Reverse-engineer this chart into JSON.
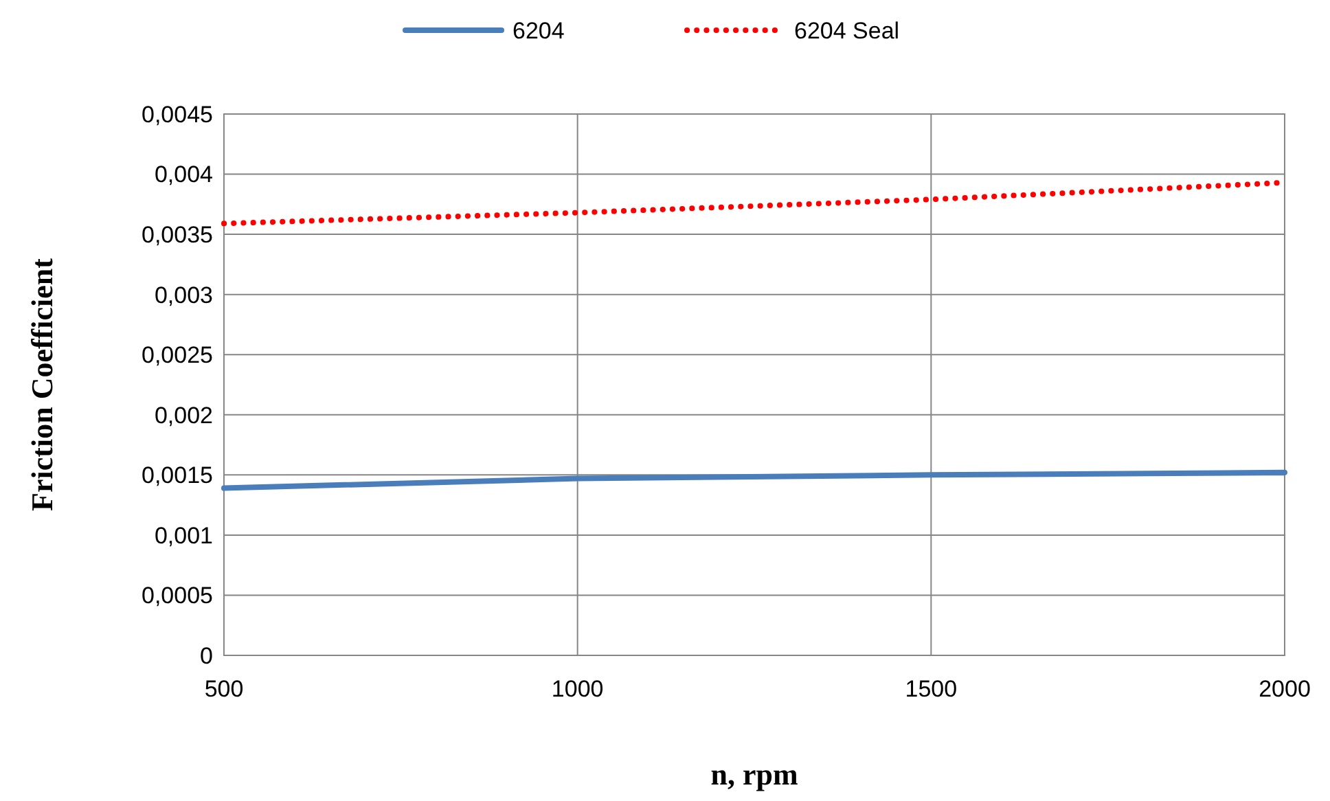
{
  "chart_data": {
    "type": "line",
    "xlabel": "n, rpm",
    "ylabel": "Friction Coefficient",
    "x": [
      500,
      1000,
      1500,
      2000
    ],
    "series": [
      {
        "name": "6204",
        "color": "#4a7ebb",
        "line_style": "solid",
        "values": [
          0.00139,
          0.00147,
          0.0015,
          0.00152
        ]
      },
      {
        "name": "6204 Seal",
        "color": "#ff0000",
        "line_style": "dotted",
        "values": [
          0.00359,
          0.00368,
          0.00379,
          0.00393
        ]
      }
    ],
    "xlim": [
      500,
      2000
    ],
    "xticks": [
      500,
      1000,
      1500,
      2000
    ],
    "ylim": [
      0,
      0.0045
    ],
    "yticks": [
      {
        "value": 0,
        "label": "0"
      },
      {
        "value": 0.0005,
        "label": "0,0005"
      },
      {
        "value": 0.001,
        "label": "0,001"
      },
      {
        "value": 0.0015,
        "label": "0,0015"
      },
      {
        "value": 0.002,
        "label": "0,002"
      },
      {
        "value": 0.0025,
        "label": "0,0025"
      },
      {
        "value": 0.003,
        "label": "0,003"
      },
      {
        "value": 0.0035,
        "label": "0,0035"
      },
      {
        "value": 0.004,
        "label": "0,004"
      },
      {
        "value": 0.0045,
        "label": "0,0045"
      }
    ],
    "grid": true,
    "legend": "top",
    "marker": "none"
  }
}
